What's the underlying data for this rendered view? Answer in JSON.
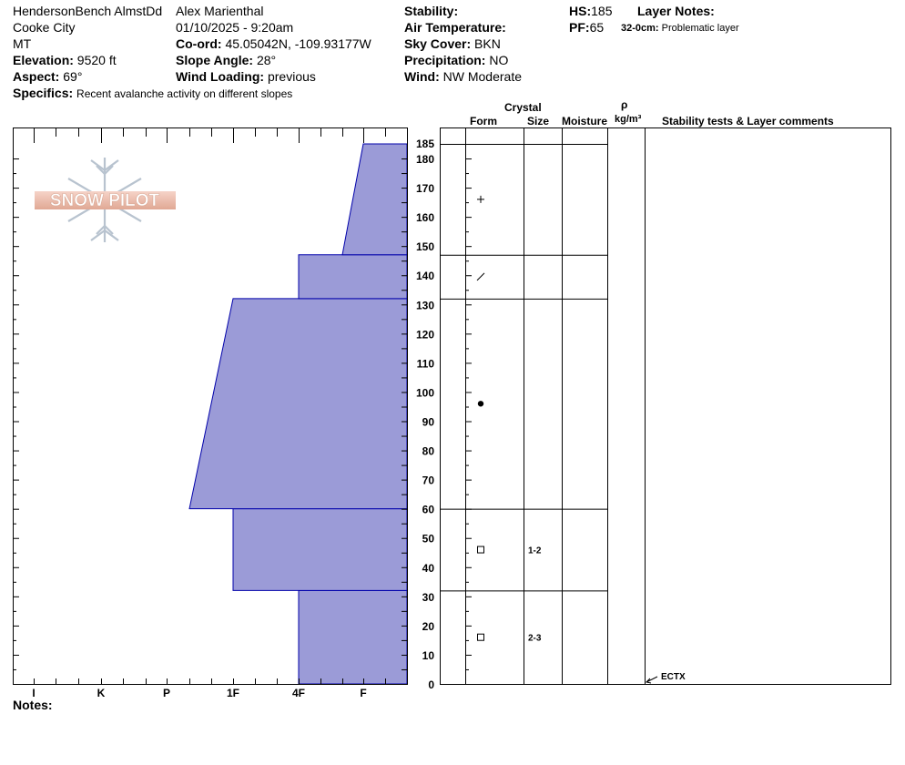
{
  "header": {
    "location": "HendersonBench AlmstDd",
    "region": "Cooke City",
    "state": "MT",
    "elevation_label": "Elevation:",
    "elevation_value": "9520 ft",
    "aspect_label": "Aspect:",
    "aspect_value": "69°",
    "specifics_label": "Specifics:",
    "specifics_value": "Recent avalanche activity on different slopes",
    "observer": "Alex Marienthal",
    "datetime": "01/10/2025 - 9:20am",
    "coord_label": "Co-ord:",
    "coord_value": "45.05042N, -109.93177W",
    "slope_label": "Slope Angle:",
    "slope_value": "28°",
    "wind_loading_label": "Wind Loading:",
    "wind_loading_value": "previous",
    "stability_label": "Stability:",
    "air_temp_label": "Air Temperature:",
    "sky_label": "Sky Cover:",
    "sky_value": "BKN",
    "precip_label": "Precipitation:",
    "precip_value": "NO",
    "wind_label": "Wind:",
    "wind_value": "NW Moderate",
    "hs_label": "HS:",
    "hs_value": "185",
    "pf_label": "PF:",
    "pf_value": "65",
    "layer_notes_label": "Layer Notes:",
    "layer_note_depth": "32-0cm:",
    "layer_note_text": "Problematic layer"
  },
  "logo_text": "SNOW PILOT",
  "notes_label": "Notes:",
  "columns": {
    "crystal": "Crystal",
    "form": "Form",
    "size": "Size",
    "moisture": "Moisture",
    "rho": "ρ",
    "density_unit": "kg/m³",
    "stability": "Stability tests & Layer comments"
  },
  "colors": {
    "hardness_fill": "#9b9bd7",
    "hardness_stroke": "#0000aa"
  },
  "chart_data": {
    "type": "bar",
    "title": "",
    "ylabel": "",
    "xlabel": "",
    "ylim": [
      0,
      185
    ],
    "hardness_ticks": [
      "I",
      "K",
      "P",
      "1F",
      "4F",
      "F"
    ],
    "y_ticks": [
      0,
      10,
      20,
      30,
      40,
      50,
      60,
      70,
      80,
      90,
      100,
      110,
      120,
      130,
      140,
      150,
      160,
      170,
      180,
      185
    ],
    "layers": [
      {
        "bottom": 0,
        "top": 32,
        "hardness_bottom": "4F",
        "hardness_top": "4F",
        "grain": "faceted",
        "size": "2-3"
      },
      {
        "bottom": 32,
        "top": 60,
        "hardness_bottom": "1F",
        "hardness_top": "1F",
        "grain": "faceted",
        "size": "1-2"
      },
      {
        "bottom": 60,
        "top": 132,
        "hardness_bottom": "P+",
        "hardness_top": "1F",
        "grain": "rounded",
        "size": ""
      },
      {
        "bottom": 132,
        "top": 147,
        "hardness_bottom": "4F",
        "hardness_top": "4F",
        "grain": "decomposing",
        "size": ""
      },
      {
        "bottom": 147,
        "top": 185,
        "hardness_bottom": "4F-F",
        "hardness_top": "F+",
        "grain": "new_snow",
        "size": ""
      }
    ],
    "stability_tests": [
      {
        "depth": 0,
        "label": "ECTX"
      }
    ]
  }
}
